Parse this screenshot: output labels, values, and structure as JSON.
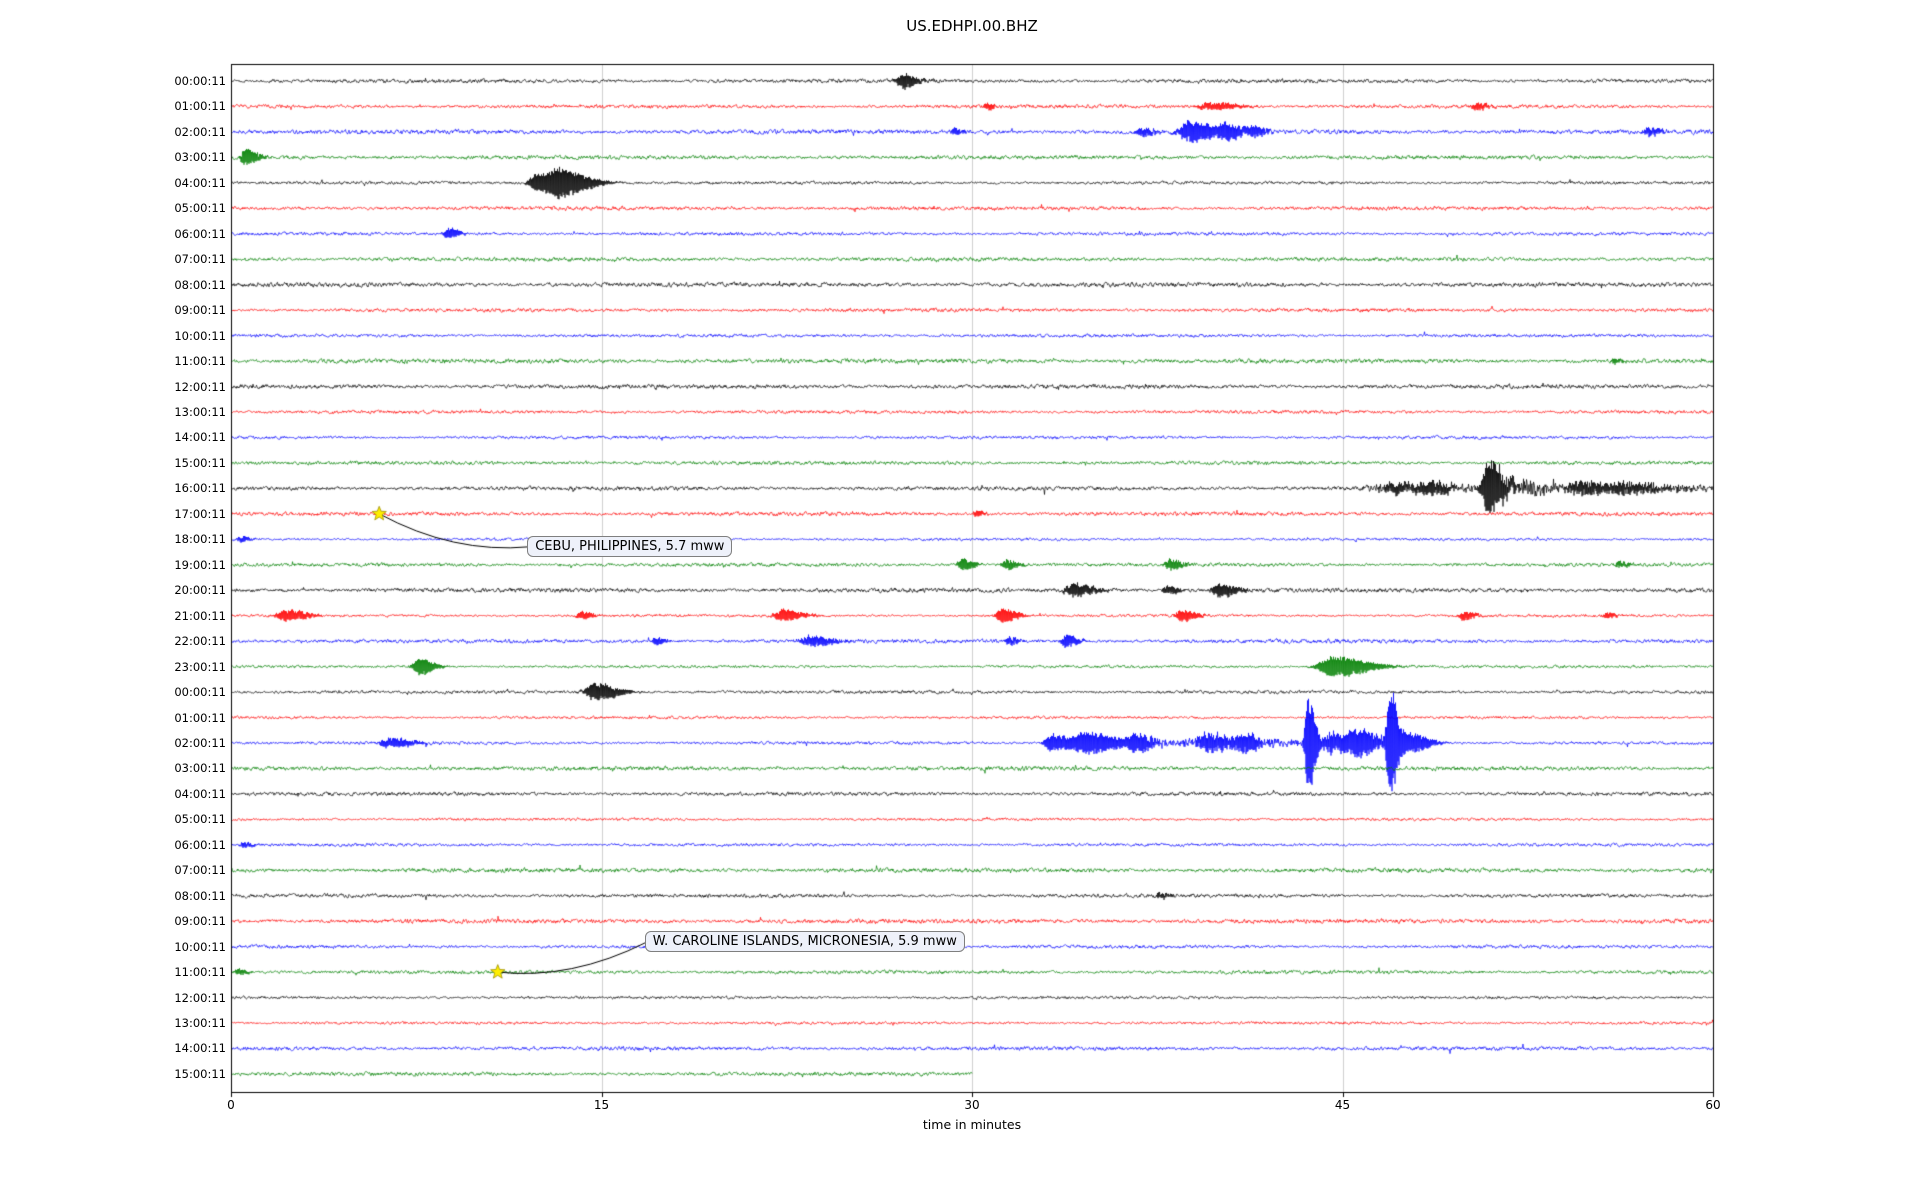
{
  "chart_data": {
    "type": "line",
    "subtype": "seismogram-helicorder-dayplot",
    "title": "US.EDHPI.00.BHZ",
    "xlabel": "time in minutes",
    "xlim": [
      0,
      60
    ],
    "x_ticks": [
      0,
      15,
      30,
      45,
      60
    ],
    "x_tick_labels": [
      "0",
      "15",
      "30",
      "45",
      "60"
    ],
    "grid_x": [
      15,
      30,
      45
    ],
    "grid_on": true,
    "colors": {
      "trace_cycle": [
        "#000000",
        "#ff0000",
        "#0000ff",
        "#008000"
      ],
      "grid": "#c9c9c9",
      "axis": "#000000",
      "star_fill": "#ffee00",
      "star_edge": "#a09000",
      "connector": "#000000"
    },
    "rows": [
      "00:00:11",
      "01:00:11",
      "02:00:11",
      "03:00:11",
      "04:00:11",
      "05:00:11",
      "06:00:11",
      "07:00:11",
      "08:00:11",
      "09:00:11",
      "10:00:11",
      "11:00:11",
      "12:00:11",
      "13:00:11",
      "14:00:11",
      "15:00:11",
      "16:00:11",
      "17:00:11",
      "18:00:11",
      "19:00:11",
      "20:00:11",
      "21:00:11",
      "22:00:11",
      "23:00:11",
      "00:00:11",
      "01:00:11",
      "02:00:11",
      "03:00:11",
      "04:00:11",
      "05:00:11",
      "06:00:11",
      "07:00:11",
      "08:00:11",
      "09:00:11",
      "10:00:11",
      "11:00:11",
      "12:00:11",
      "13:00:11",
      "14:00:11",
      "15:00:11"
    ],
    "minutes_per_row": 60,
    "truncated_row": {
      "index": 39,
      "end_minute": 30
    },
    "events": [
      {
        "row": 0,
        "t": 27.2,
        "dur": 0.5,
        "amp": 7,
        "type": "spike"
      },
      {
        "row": 1,
        "t": 30.6,
        "dur": 0.3,
        "amp": 3.5,
        "type": "spike"
      },
      {
        "row": 1,
        "t": 39.6,
        "dur": 0.9,
        "amp": 4,
        "type": "spike"
      },
      {
        "row": 1,
        "t": 50.4,
        "dur": 0.4,
        "amp": 3.5,
        "type": "spike"
      },
      {
        "row": 2,
        "t": 29.3,
        "dur": 0.3,
        "amp": 3,
        "type": "spike"
      },
      {
        "row": 2,
        "t": 36.8,
        "dur": 0.5,
        "amp": 4,
        "type": "spike"
      },
      {
        "row": 2,
        "t": 38.8,
        "dur": 0.9,
        "amp": 11,
        "type": "spike"
      },
      {
        "row": 2,
        "t": 40.3,
        "dur": 0.6,
        "amp": 7,
        "type": "spike"
      },
      {
        "row": 2,
        "t": 41.4,
        "dur": 0.4,
        "amp": 5,
        "type": "spike"
      },
      {
        "row": 2,
        "t": 57.4,
        "dur": 0.4,
        "amp": 4.5,
        "type": "spike"
      },
      {
        "row": 3,
        "t": 0.6,
        "dur": 0.4,
        "amp": 9,
        "type": "spike"
      },
      {
        "row": 4,
        "t": 12.4,
        "dur": 0.7,
        "amp": 9,
        "type": "spike"
      },
      {
        "row": 4,
        "t": 13.3,
        "dur": 1.0,
        "amp": 13,
        "type": "spike"
      },
      {
        "row": 6,
        "t": 8.8,
        "dur": 0.4,
        "amp": 5,
        "type": "spike"
      },
      {
        "row": 11,
        "t": 56.0,
        "dur": 0.3,
        "amp": 2.5,
        "type": "spike"
      },
      {
        "row": 16,
        "t": 46.0,
        "dur": 14,
        "amp": 2.5,
        "type": "band"
      },
      {
        "row": 16,
        "t": 47.0,
        "dur": 1.2,
        "amp": 5,
        "type": "spike"
      },
      {
        "row": 16,
        "t": 48.5,
        "dur": 0.8,
        "amp": 5,
        "type": "spike"
      },
      {
        "row": 16,
        "t": 50.9,
        "dur": 0.5,
        "amp": 30,
        "type": "spike"
      },
      {
        "row": 16,
        "t": 51.5,
        "dur": 2.0,
        "amp": 6,
        "type": "band"
      },
      {
        "row": 16,
        "t": 54.5,
        "dur": 1.0,
        "amp": 7,
        "type": "spike"
      },
      {
        "row": 16,
        "t": 56.5,
        "dur": 1.5,
        "amp": 5,
        "type": "spike"
      },
      {
        "row": 17,
        "t": 30.2,
        "dur": 0.25,
        "amp": 3.5,
        "type": "spike"
      },
      {
        "row": 18,
        "t": 0.4,
        "dur": 0.3,
        "amp": 3,
        "type": "spike"
      },
      {
        "row": 19,
        "t": 29.6,
        "dur": 0.4,
        "amp": 6,
        "type": "spike"
      },
      {
        "row": 19,
        "t": 31.4,
        "dur": 0.4,
        "amp": 5,
        "type": "spike"
      },
      {
        "row": 19,
        "t": 38.0,
        "dur": 0.4,
        "amp": 5.5,
        "type": "spike"
      },
      {
        "row": 19,
        "t": 56.2,
        "dur": 0.3,
        "amp": 3,
        "type": "spike"
      },
      {
        "row": 20,
        "t": 34.1,
        "dur": 0.7,
        "amp": 7,
        "type": "spike"
      },
      {
        "row": 20,
        "t": 37.9,
        "dur": 0.4,
        "amp": 4,
        "type": "spike"
      },
      {
        "row": 20,
        "t": 40.0,
        "dur": 0.6,
        "amp": 7,
        "type": "spike"
      },
      {
        "row": 21,
        "t": 2.2,
        "dur": 0.7,
        "amp": 6,
        "type": "spike"
      },
      {
        "row": 21,
        "t": 14.2,
        "dur": 0.4,
        "amp": 4,
        "type": "spike"
      },
      {
        "row": 21,
        "t": 22.3,
        "dur": 0.7,
        "amp": 6,
        "type": "spike"
      },
      {
        "row": 21,
        "t": 31.2,
        "dur": 0.5,
        "amp": 7.5,
        "type": "spike"
      },
      {
        "row": 21,
        "t": 38.5,
        "dur": 0.5,
        "amp": 6,
        "type": "spike"
      },
      {
        "row": 21,
        "t": 49.9,
        "dur": 0.4,
        "amp": 4.5,
        "type": "spike"
      },
      {
        "row": 21,
        "t": 55.7,
        "dur": 0.3,
        "amp": 3,
        "type": "spike"
      },
      {
        "row": 22,
        "t": 17.2,
        "dur": 0.3,
        "amp": 4,
        "type": "spike"
      },
      {
        "row": 22,
        "t": 23.4,
        "dur": 0.8,
        "amp": 5,
        "type": "spike"
      },
      {
        "row": 22,
        "t": 31.5,
        "dur": 0.3,
        "amp": 4.5,
        "type": "spike"
      },
      {
        "row": 22,
        "t": 33.8,
        "dur": 0.4,
        "amp": 6.5,
        "type": "spike"
      },
      {
        "row": 23,
        "t": 7.6,
        "dur": 0.5,
        "amp": 9,
        "type": "spike"
      },
      {
        "row": 23,
        "t": 44.6,
        "dur": 1.2,
        "amp": 11,
        "type": "spike"
      },
      {
        "row": 24,
        "t": 14.7,
        "dur": 0.8,
        "amp": 9,
        "type": "spike"
      },
      {
        "row": 26,
        "t": 6.4,
        "dur": 0.8,
        "amp": 5,
        "type": "spike"
      },
      {
        "row": 26,
        "t": 33.2,
        "dur": 0.6,
        "amp": 9,
        "type": "spike"
      },
      {
        "row": 26,
        "t": 34.6,
        "dur": 1.2,
        "amp": 11,
        "type": "spike"
      },
      {
        "row": 26,
        "t": 36.6,
        "dur": 0.6,
        "amp": 8,
        "type": "spike"
      },
      {
        "row": 26,
        "t": 37.0,
        "dur": 10,
        "amp": 3,
        "type": "band"
      },
      {
        "row": 26,
        "t": 39.5,
        "dur": 1.0,
        "amp": 9,
        "type": "spike"
      },
      {
        "row": 26,
        "t": 41.0,
        "dur": 0.6,
        "amp": 8,
        "type": "spike"
      },
      {
        "row": 26,
        "t": 43.6,
        "dur": 0.25,
        "amp": 55,
        "type": "spike"
      },
      {
        "row": 26,
        "t": 44.6,
        "dur": 0.7,
        "amp": 10,
        "type": "spike"
      },
      {
        "row": 26,
        "t": 45.6,
        "dur": 0.8,
        "amp": 12,
        "type": "spike"
      },
      {
        "row": 26,
        "t": 46.9,
        "dur": 0.25,
        "amp": 60,
        "type": "spike"
      },
      {
        "row": 26,
        "t": 47.6,
        "dur": 0.7,
        "amp": 11,
        "type": "spike"
      },
      {
        "row": 30,
        "t": 0.5,
        "dur": 0.3,
        "amp": 3,
        "type": "spike"
      },
      {
        "row": 32,
        "t": 37.6,
        "dur": 0.3,
        "amp": 3,
        "type": "spike"
      },
      {
        "row": 35,
        "t": 0.3,
        "dur": 0.3,
        "amp": 3,
        "type": "spike"
      }
    ],
    "annotations": [
      {
        "label": "CEBU, PHILIPPINES, 5.7 mww",
        "row": 17,
        "minute": 6.0,
        "marker": "yellow-star"
      },
      {
        "label": "W. CAROLINE ISLANDS, MICRONESIA, 5.9 mww",
        "row": 35,
        "minute": 10.8,
        "marker": "yellow-star"
      }
    ]
  }
}
